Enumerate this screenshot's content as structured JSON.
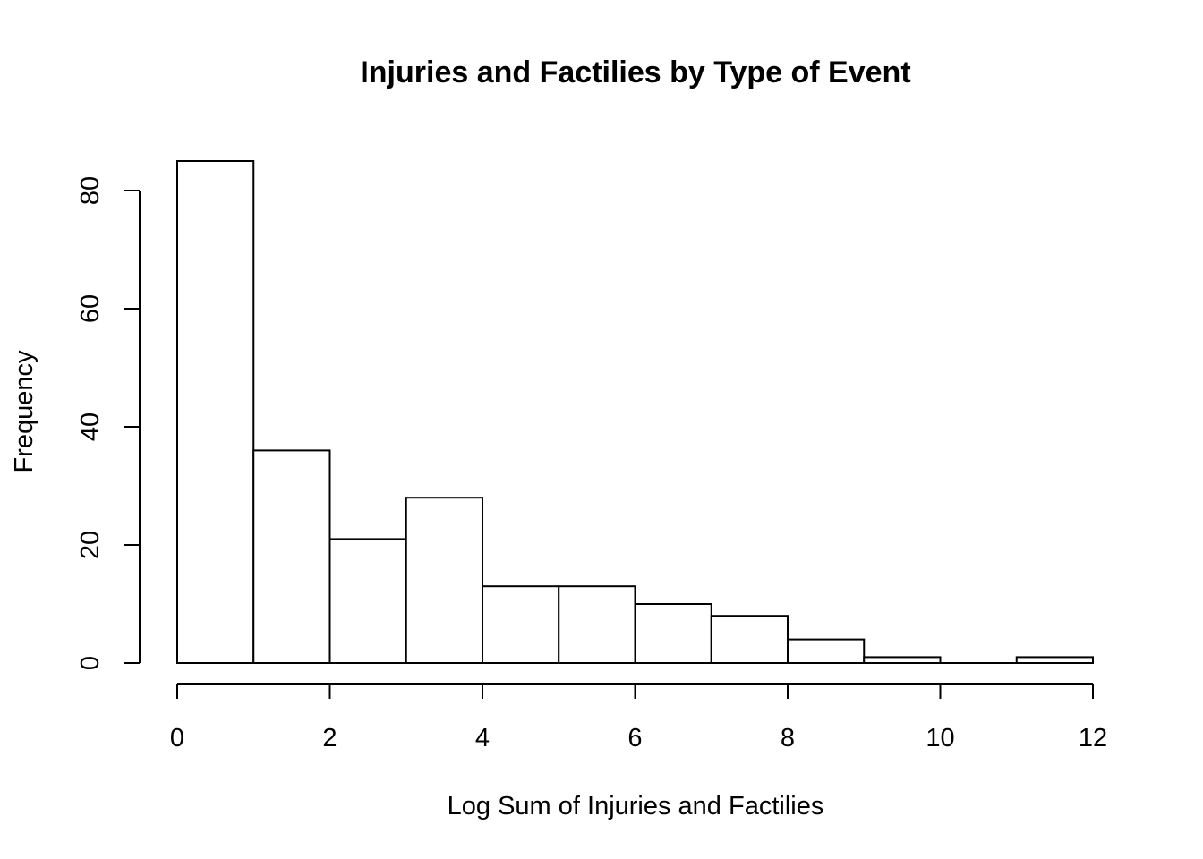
{
  "chart_data": {
    "type": "bar",
    "title": "Injuries and Factilies by Type of Event",
    "xlabel": "Log Sum of Injuries and Factilies",
    "ylabel": "Frequency",
    "bins": [
      {
        "x0": 0,
        "x1": 1,
        "count": 85
      },
      {
        "x0": 1,
        "x1": 2,
        "count": 36
      },
      {
        "x0": 2,
        "x1": 3,
        "count": 21
      },
      {
        "x0": 3,
        "x1": 4,
        "count": 28
      },
      {
        "x0": 4,
        "x1": 5,
        "count": 13
      },
      {
        "x0": 5,
        "x1": 6,
        "count": 13
      },
      {
        "x0": 6,
        "x1": 7,
        "count": 10
      },
      {
        "x0": 7,
        "x1": 8,
        "count": 8
      },
      {
        "x0": 8,
        "x1": 9,
        "count": 4
      },
      {
        "x0": 9,
        "x1": 10,
        "count": 1
      },
      {
        "x0": 10,
        "x1": 11,
        "count": 0
      },
      {
        "x0": 11,
        "x1": 12,
        "count": 1
      }
    ],
    "xlim": [
      0,
      12
    ],
    "ylim": [
      0,
      85
    ],
    "x_ticks": [
      "0",
      "2",
      "4",
      "6",
      "8",
      "10",
      "12"
    ],
    "y_ticks": [
      "0",
      "20",
      "40",
      "60",
      "80"
    ],
    "grid": false,
    "legend": "none"
  }
}
